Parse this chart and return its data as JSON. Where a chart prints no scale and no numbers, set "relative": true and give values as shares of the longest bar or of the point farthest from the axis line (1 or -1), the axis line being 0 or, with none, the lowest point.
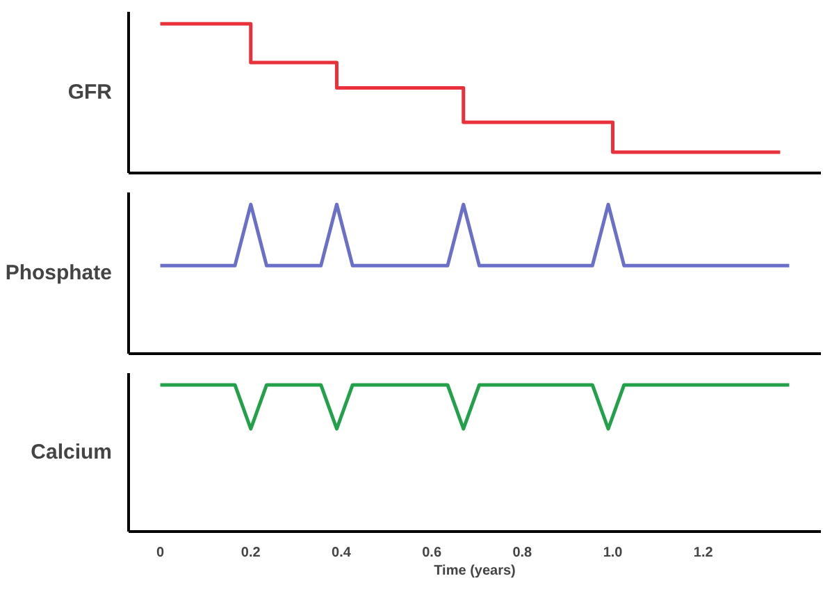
{
  "chart_data": [
    {
      "type": "step",
      "ylabel": "GFR",
      "relative": true,
      "xlim": [
        -0.07,
        1.46
      ],
      "xticks": [
        0,
        0.2,
        0.4,
        0.6,
        0.8,
        1.0,
        1.2
      ],
      "tick_labels": false,
      "grid": false,
      "series": [
        {
          "color": "#e8313a",
          "x": [
            0,
            0.2,
            0.39,
            0.67,
            1.0,
            1.37
          ],
          "values": [
            1,
            0.74,
            0.57,
            0.34,
            0.14,
            0.14
          ]
        }
      ]
    },
    {
      "type": "line",
      "ylabel": "Phosphate",
      "relative": true,
      "xlim": [
        -0.07,
        1.46
      ],
      "xticks": [
        0,
        0.2,
        0.4,
        0.6,
        0.8,
        1.0,
        1.2
      ],
      "tick_labels": false,
      "grid": false,
      "series": [
        {
          "color": "#6a6fc8",
          "x": [
            0,
            0.165,
            0.2,
            0.235,
            0.355,
            0.39,
            0.425,
            0.635,
            0.67,
            0.705,
            0.955,
            0.99,
            1.025,
            1.39
          ],
          "values": [
            0.59,
            0.59,
            1,
            0.59,
            0.59,
            1,
            0.59,
            0.59,
            1,
            0.59,
            0.59,
            1,
            0.59,
            0.59
          ]
        }
      ]
    },
    {
      "type": "line",
      "ylabel": "Calcium",
      "xlabel": "Time (years)",
      "relative": true,
      "xlim": [
        -0.07,
        1.46
      ],
      "xticks": [
        0,
        0.2,
        0.4,
        0.6,
        0.8,
        {
          "value": 1.0,
          "label": "1.0"
        },
        1.2
      ],
      "tick_labels": "x",
      "grid": false,
      "series": [
        {
          "color": "#22a04a",
          "x": [
            0,
            0.165,
            0.2,
            0.235,
            0.355,
            0.39,
            0.425,
            0.635,
            0.67,
            0.705,
            0.955,
            0.99,
            1.025,
            1.39
          ],
          "values": [
            1,
            1,
            0.7,
            1,
            1,
            0.7,
            1,
            1,
            0.7,
            1,
            1,
            0.7,
            1,
            1
          ]
        }
      ]
    }
  ]
}
